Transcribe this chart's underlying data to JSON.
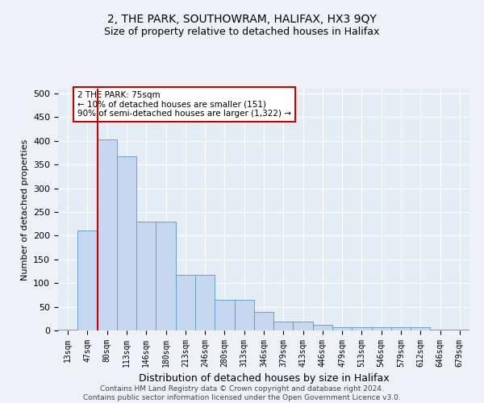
{
  "title_line1": "2, THE PARK, SOUTHOWRAM, HALIFAX, HX3 9QY",
  "title_line2": "Size of property relative to detached houses in Halifax",
  "xlabel": "Distribution of detached houses by size in Halifax",
  "ylabel": "Number of detached properties",
  "categories": [
    "13sqm",
    "47sqm",
    "80sqm",
    "113sqm",
    "146sqm",
    "180sqm",
    "213sqm",
    "246sqm",
    "280sqm",
    "313sqm",
    "346sqm",
    "379sqm",
    "413sqm",
    "446sqm",
    "479sqm",
    "513sqm",
    "546sqm",
    "579sqm",
    "612sqm",
    "646sqm",
    "679sqm"
  ],
  "values": [
    2,
    211,
    403,
    367,
    229,
    229,
    118,
    118,
    65,
    65,
    39,
    18,
    18,
    12,
    7,
    7,
    7,
    7,
    7,
    2,
    2
  ],
  "bar_color": "#c5d8ef",
  "bar_edge_color": "#6a9fc8",
  "red_line_x": 2,
  "annotation_text": "2 THE PARK: 75sqm\n← 10% of detached houses are smaller (151)\n90% of semi-detached houses are larger (1,322) →",
  "annotation_box_color": "#ffffff",
  "annotation_box_edge_color": "#cc0000",
  "ylim": [
    0,
    510
  ],
  "yticks": [
    0,
    50,
    100,
    150,
    200,
    250,
    300,
    350,
    400,
    450,
    500
  ],
  "footer_line1": "Contains HM Land Registry data © Crown copyright and database right 2024.",
  "footer_line2": "Contains public sector information licensed under the Open Government Licence v3.0.",
  "bg_color": "#eef2f8",
  "plot_bg_color": "#e4ecf6",
  "grid_color": "#ffffff",
  "title_fontsize": 10,
  "subtitle_fontsize": 9,
  "ylabel_fontsize": 8,
  "xlabel_fontsize": 9,
  "tick_fontsize": 8,
  "xtick_fontsize": 7
}
